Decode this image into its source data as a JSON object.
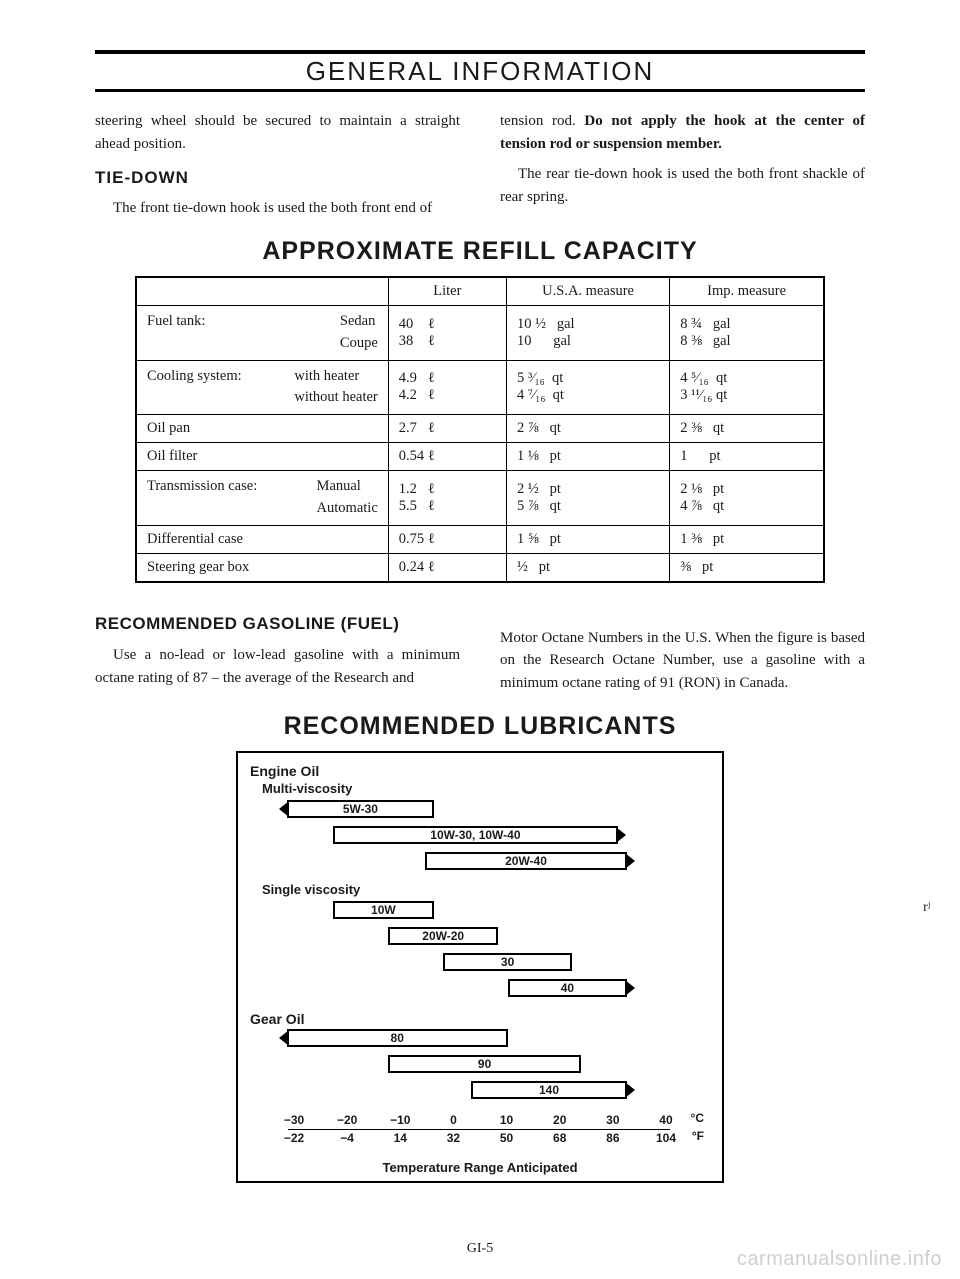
{
  "header": {
    "title": "GENERAL INFORMATION"
  },
  "intro": {
    "para1_left": "steering wheel should be secured to maintain a straight ahead position.",
    "tiedown_head": "TIE-DOWN",
    "tiedown_left": "The front tie-down hook is used the both front end of",
    "para1_right_a": "tension rod. ",
    "para1_right_b": "Do not apply the hook at the center of tension rod or suspension member.",
    "para2_right": "The rear tie-down hook is used the both front shackle of rear spring."
  },
  "section1": {
    "title": "APPROXIMATE REFILL CAPACITY"
  },
  "capacity_table": {
    "headers": [
      "",
      "Liter",
      "U.S.A. measure",
      "Imp. measure"
    ],
    "rows": [
      {
        "label_main": "Fuel tank:",
        "sublines": [
          "Sedan",
          "Coupe"
        ],
        "liter": [
          "40    ℓ",
          "38    ℓ"
        ],
        "us": [
          "10 ½   gal",
          "10      gal"
        ],
        "imp": [
          "8 ¾   gal",
          "8 ⅜   gal"
        ]
      },
      {
        "label_main": "Cooling system:",
        "sublines": [
          "with heater",
          "without heater"
        ],
        "liter": [
          "4.9   ℓ",
          "4.2   ℓ"
        ],
        "us": [
          "5 ³⁄₁₆  qt",
          "4 ⁷⁄₁₆  qt"
        ],
        "imp": [
          "4 ⁵⁄₁₆  qt",
          "3 ¹¹⁄₁₆ qt"
        ]
      },
      {
        "label_main": "Oil pan",
        "sublines": [],
        "liter": [
          "2.7   ℓ"
        ],
        "us": [
          "2 ⅞   qt"
        ],
        "imp": [
          "2 ⅜   qt"
        ]
      },
      {
        "label_main": "Oil filter",
        "sublines": [],
        "liter": [
          "0.54 ℓ"
        ],
        "us": [
          "1 ⅛   pt"
        ],
        "imp": [
          "1      pt"
        ]
      },
      {
        "label_main": "Transmission case:",
        "sublines": [
          "Manual",
          "Automatic"
        ],
        "liter": [
          "1.2   ℓ",
          "5.5   ℓ"
        ],
        "us": [
          "2 ½   pt",
          "5 ⅞   qt"
        ],
        "imp": [
          "2 ⅛   pt",
          "4 ⅞   qt"
        ]
      },
      {
        "label_main": "Differential case",
        "sublines": [],
        "liter": [
          "0.75 ℓ"
        ],
        "us": [
          "1 ⅝   pt"
        ],
        "imp": [
          "1 ⅜   pt"
        ]
      },
      {
        "label_main": "Steering gear box",
        "sublines": [],
        "liter": [
          "0.24 ℓ"
        ],
        "us": [
          "½   pt"
        ],
        "imp": [
          "⅜   pt"
        ]
      }
    ]
  },
  "gasoline": {
    "head": "RECOMMENDED GASOLINE (FUEL)",
    "left": "Use a no-lead or low-lead gasoline with a minimum octane rating of 87 – the average of the Research and",
    "right": "Motor Octane Numbers in the U.S. When the figure is based on the Research Octane Number, use a gasoline with a minimum octane rating of 91 (RON) in Canada."
  },
  "section2": {
    "title": "RECOMMENDED LUBRICANTS"
  },
  "lube": {
    "engine_title": "Engine Oil",
    "multi": "Multi-viscosity",
    "single": "Single viscosity",
    "gear_title": "Gear Oil",
    "bars_multi": [
      {
        "label": "5W-30",
        "left_pct": 8,
        "width_pct": 32,
        "al": true,
        "ar": false
      },
      {
        "label": "10W-30, 10W-40",
        "left_pct": 18,
        "width_pct": 62,
        "al": false,
        "ar": true
      },
      {
        "label": "20W-40",
        "left_pct": 38,
        "width_pct": 44,
        "al": false,
        "ar": true
      }
    ],
    "bars_single": [
      {
        "label": "10W",
        "left_pct": 18,
        "width_pct": 22,
        "al": false,
        "ar": false
      },
      {
        "label": "20W-20",
        "left_pct": 30,
        "width_pct": 24,
        "al": false,
        "ar": false
      },
      {
        "label": "30",
        "left_pct": 42,
        "width_pct": 28,
        "al": false,
        "ar": false
      },
      {
        "label": "40",
        "left_pct": 56,
        "width_pct": 26,
        "al": false,
        "ar": true
      }
    ],
    "bars_gear": [
      {
        "label": "80",
        "left_pct": 8,
        "width_pct": 48,
        "al": true,
        "ar": false
      },
      {
        "label": "90",
        "left_pct": 30,
        "width_pct": 42,
        "al": false,
        "ar": false
      },
      {
        "label": "140",
        "left_pct": 48,
        "width_pct": 34,
        "al": false,
        "ar": true
      }
    ],
    "scale_c": [
      "−30",
      "−20",
      "−10",
      "0",
      "10",
      "20",
      "30",
      "40"
    ],
    "scale_f": [
      "−22",
      "−4",
      "14",
      "32",
      "50",
      "68",
      "86",
      "104"
    ],
    "unit_c": "°C",
    "unit_f": "°F",
    "caption": "Temperature Range Anticipated"
  },
  "footer": {
    "page_num": "GI-5",
    "watermark": "carmanualsonline.info"
  }
}
